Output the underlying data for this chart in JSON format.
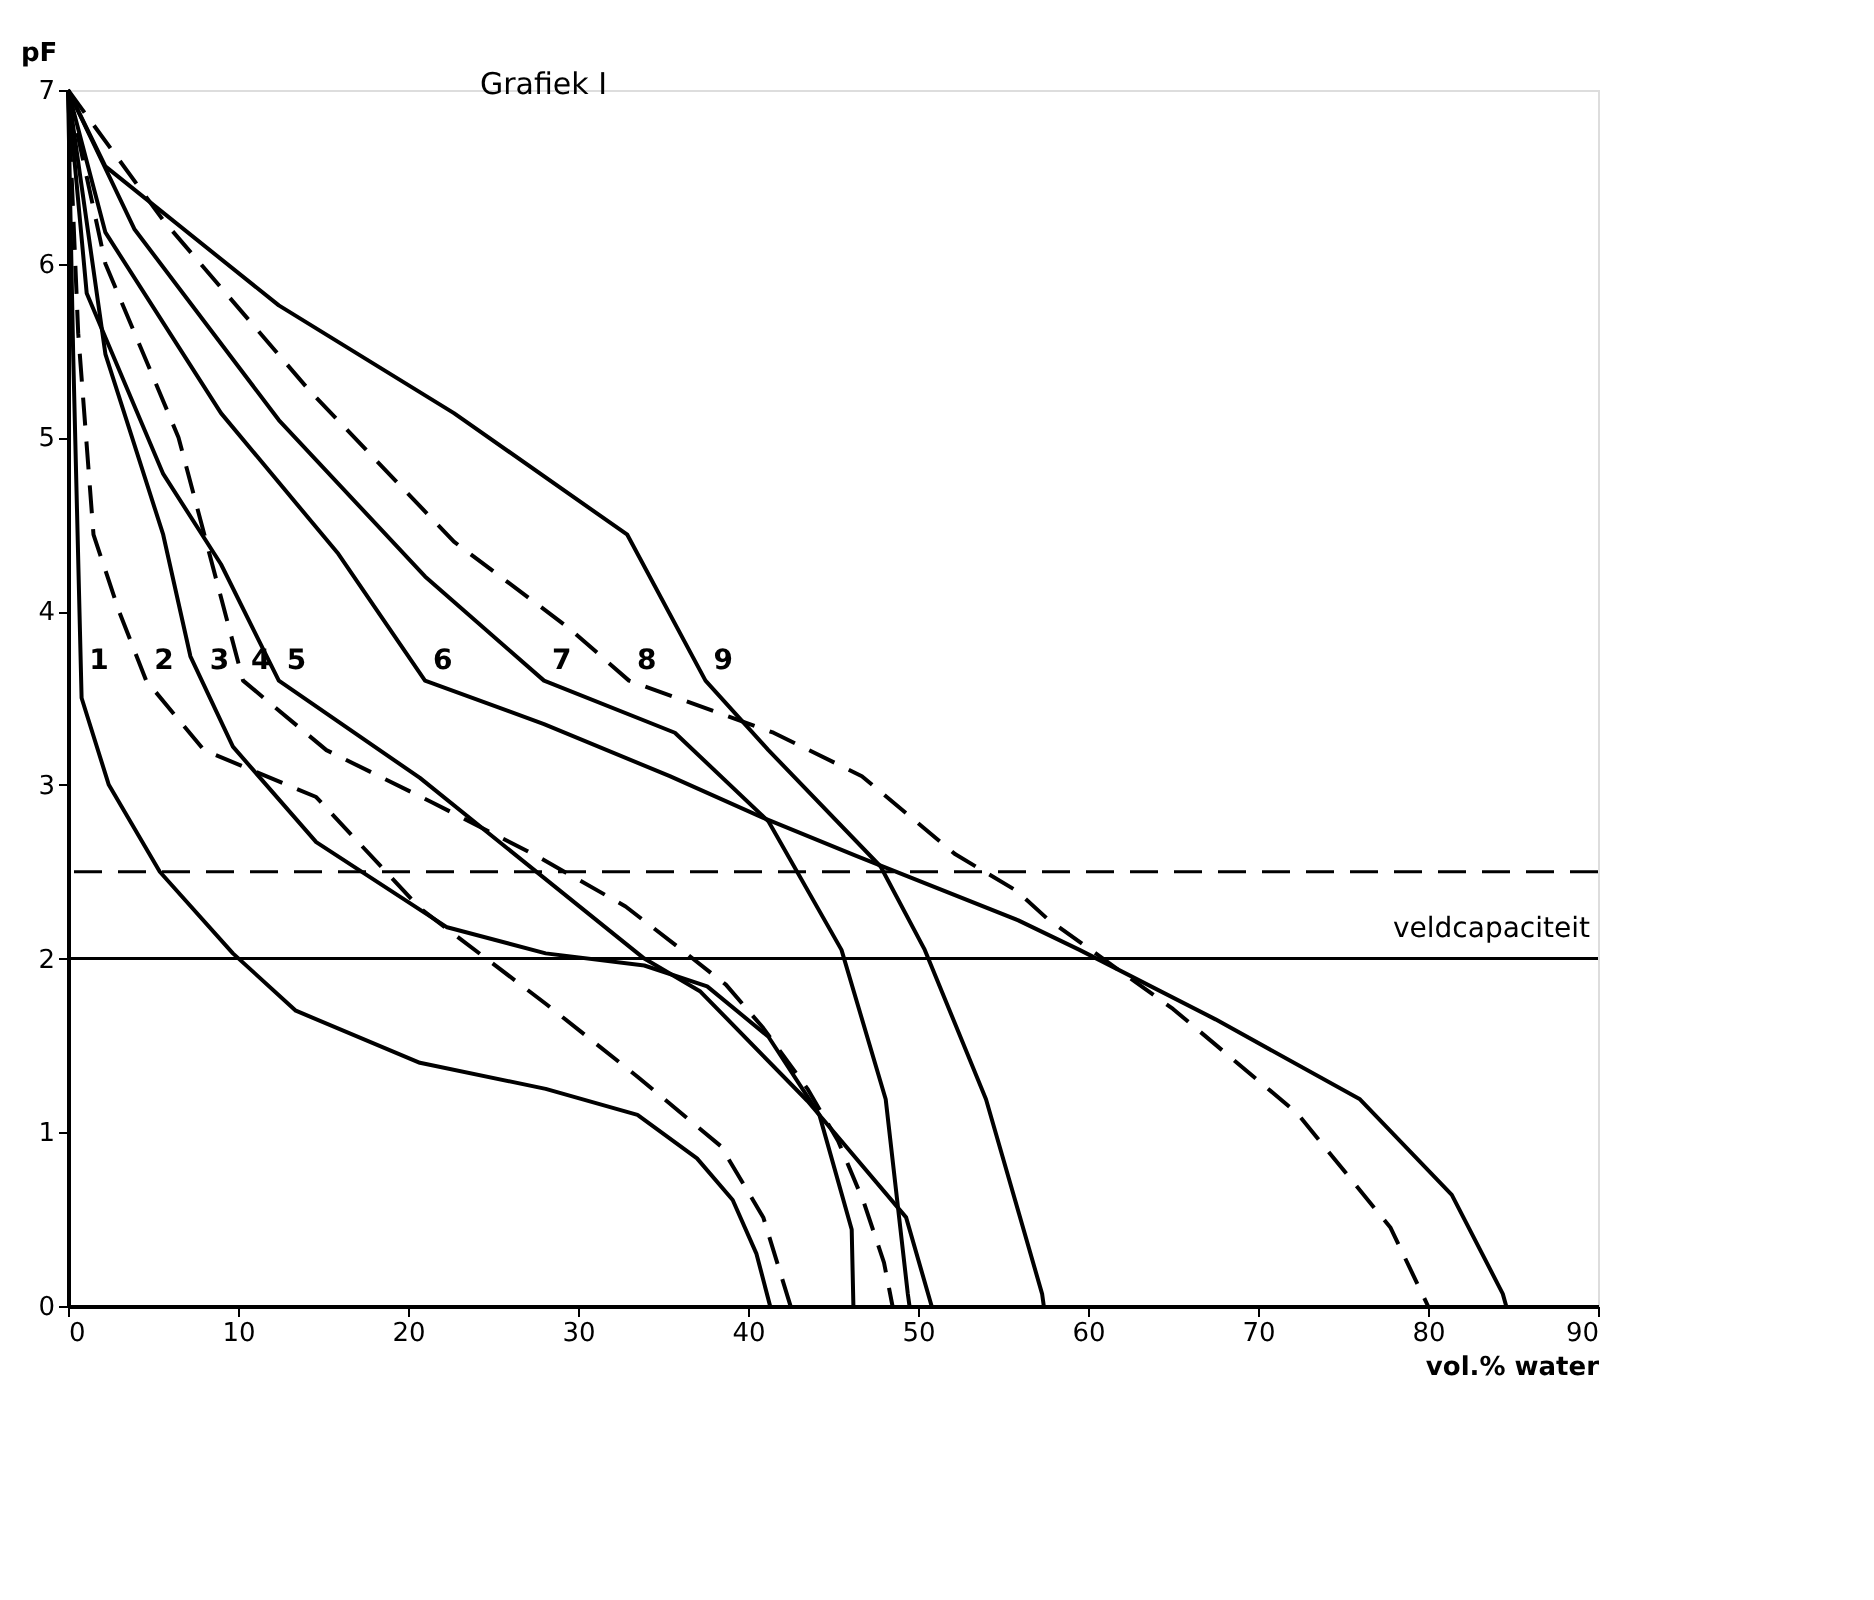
{
  "chart_data": {
    "type": "line",
    "title": "Grafiek I",
    "xlabel": "vol.% water",
    "ylabel": "pF",
    "xlim": [
      0,
      90
    ],
    "xticks": [
      0,
      10,
      20,
      30,
      40,
      50,
      60,
      70,
      80,
      90
    ],
    "ylim": [
      0,
      7
    ],
    "yticks": [
      0,
      1,
      2,
      3,
      4,
      5,
      6,
      7
    ],
    "grid": false,
    "marker": "none",
    "series": [
      {
        "name": "1",
        "color": "#000000",
        "line_style": "solid",
        "x": [
          0,
          0.3,
          0.8,
          2.4,
          5.4,
          9.7,
          13.4,
          20.7,
          28.1,
          33.5,
          37,
          39.1,
          40.5,
          41.3
        ],
        "values": [
          7,
          5.5,
          3.5,
          3.0,
          2.5,
          2.03,
          1.7,
          1.4,
          1.25,
          1.1,
          0.85,
          0.61,
          0.3,
          0
        ]
      },
      {
        "name": "2",
        "color": "#000000",
        "line_style": "dashed",
        "x": [
          0,
          0.6,
          1.5,
          3,
          4.6,
          8,
          14.6,
          20.7,
          28.1,
          33.5,
          38.4,
          40.9,
          42.5
        ],
        "values": [
          7,
          5.6,
          4.44,
          4.0,
          3.6,
          3.2,
          2.93,
          2.29,
          1.74,
          1.32,
          0.92,
          0.51,
          0
        ]
      },
      {
        "name": "3",
        "color": "#000000",
        "line_style": "solid",
        "x": [
          0,
          2.2,
          5.6,
          7.2,
          9.7,
          14.6,
          22.3,
          28.1,
          33.9,
          37.6,
          41.2,
          44.2,
          46.1,
          46.2
        ],
        "values": [
          7,
          5.48,
          4.44,
          3.74,
          3.22,
          2.67,
          2.18,
          2.03,
          1.96,
          1.84,
          1.55,
          1.1,
          0.44,
          0
        ]
      },
      {
        "name": "4",
        "color": "#000000",
        "line_style": "dashed",
        "x": [
          0,
          2.2,
          6.5,
          10.3,
          15.2,
          21.4,
          27.4,
          32.8,
          36.1,
          38.7,
          40.9,
          43.5,
          45.3,
          46.8,
          48.0,
          48.5
        ],
        "values": [
          7,
          6.0,
          5.0,
          3.6,
          3.2,
          2.9,
          2.6,
          2.3,
          2.05,
          1.85,
          1.6,
          1.25,
          0.95,
          0.6,
          0.25,
          0
        ]
      },
      {
        "name": "5",
        "color": "#000000",
        "line_style": "solid",
        "x": [
          0,
          1.1,
          5.6,
          9,
          12.4,
          20.7,
          33.9,
          37.2,
          43.5,
          49.3,
          50.8
        ],
        "values": [
          7,
          5.83,
          4.79,
          4.27,
          3.6,
          3.04,
          2.0,
          1.81,
          1.18,
          0.51,
          0
        ]
      },
      {
        "name": "6",
        "color": "#000000",
        "line_style": "solid",
        "x": [
          0,
          2.2,
          9,
          15.9,
          21,
          28,
          35.4,
          40.9,
          46.4,
          55.9,
          59.5,
          67.5,
          76,
          81.4,
          84.4,
          84.6
        ],
        "values": [
          7,
          6.18,
          5.14,
          4.33,
          3.6,
          3.35,
          3.05,
          2.81,
          2.59,
          2.22,
          2.05,
          1.65,
          1.19,
          0.64,
          0.07,
          0
        ]
      },
      {
        "name": "7",
        "color": "#000000",
        "line_style": "solid",
        "x": [
          0,
          3.9,
          12.4,
          21,
          28,
          35.7,
          41.2,
          45.5,
          48.1,
          49.4,
          49.5
        ],
        "values": [
          7,
          6.2,
          5.1,
          4.2,
          3.6,
          3.3,
          2.79,
          2.05,
          1.19,
          0.07,
          0
        ]
      },
      {
        "name": "8",
        "color": "#000000",
        "line_style": "dashed",
        "x": [
          0,
          5.6,
          14.2,
          22.7,
          29.5,
          33,
          41.5,
          46.7,
          52.2,
          55.8,
          57.6,
          65,
          72.3,
          77.8,
          80
        ],
        "values": [
          7,
          6.25,
          5.27,
          4.4,
          3.9,
          3.6,
          3.3,
          3.05,
          2.6,
          2.39,
          2.23,
          1.71,
          1.11,
          0.45,
          0
        ]
      },
      {
        "name": "9",
        "color": "#000000",
        "line_style": "solid",
        "x": [
          0,
          2.2,
          12.4,
          22.7,
          32.9,
          37.5,
          41.2,
          47.8,
          50.4,
          54,
          57.3,
          57.4
        ],
        "values": [
          7,
          6.56,
          5.76,
          5.14,
          4.44,
          3.6,
          3.2,
          2.53,
          2.05,
          1.19,
          0.07,
          0
        ]
      }
    ],
    "ref_lines": [
      {
        "axis": "y",
        "value": 2.5,
        "label": null,
        "color": "#000000",
        "line_style": "dashed"
      },
      {
        "axis": "y",
        "value": 2,
        "label": "veldcapaciteit",
        "color": "#000000",
        "line_style": "solid"
      }
    ]
  }
}
